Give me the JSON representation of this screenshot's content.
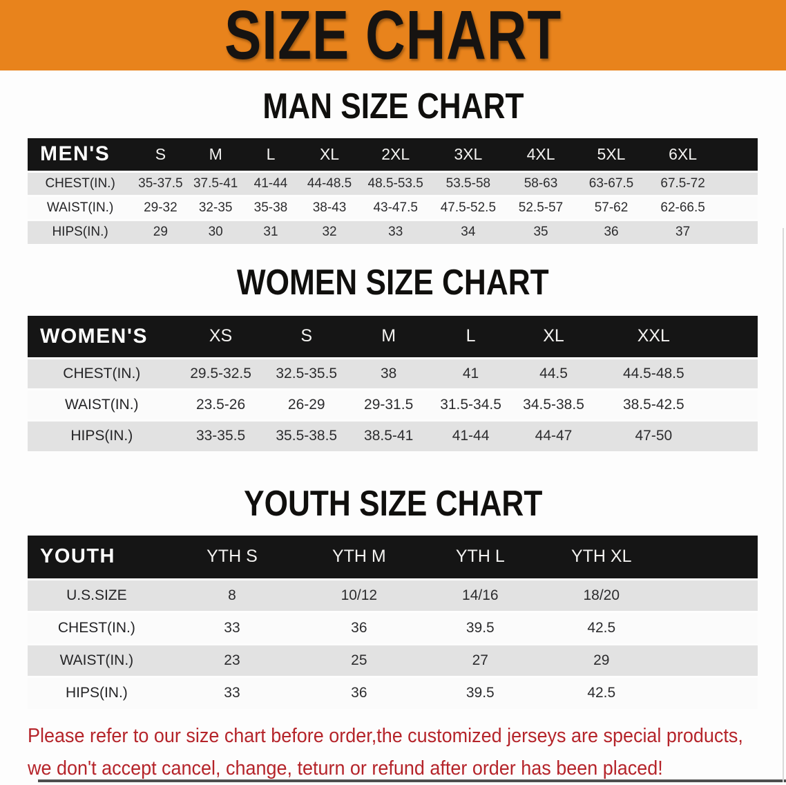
{
  "banner": {
    "title": "SIZE CHART",
    "bg_color": "#E8831C",
    "text_color": "#161311"
  },
  "colors": {
    "table_header_bg": "#151515",
    "row_stripe_gray": "#E2E2E2",
    "disclaimer_red": "#B5242A"
  },
  "sections": [
    {
      "heading": "MAN SIZE CHART",
      "table": {
        "label_header": "MEN'S",
        "size_headers": [
          "S",
          "M",
          "L",
          "XL",
          "2XL",
          "3XL",
          "4XL",
          "5XL",
          "6XL"
        ],
        "rows": [
          {
            "label": "CHEST(IN.)",
            "values": [
              "35-37.5",
              "37.5-41",
              "41-44",
              "44-48.5",
              "48.5-53.5",
              "53.5-58",
              "58-63",
              "63-67.5",
              "67.5-72"
            ]
          },
          {
            "label": "WAIST(IN.)",
            "values": [
              "29-32",
              "32-35",
              "35-38",
              "38-43",
              "43-47.5",
              "47.5-52.5",
              "52.5-57",
              "57-62",
              "62-66.5"
            ]
          },
          {
            "label": "HIPS(IN.)",
            "values": [
              "29",
              "30",
              "31",
              "32",
              "33",
              "34",
              "35",
              "36",
              "37"
            ]
          }
        ]
      }
    },
    {
      "heading": "WOMEN SIZE CHART",
      "table": {
        "label_header": "WOMEN'S",
        "size_headers": [
          "XS",
          "S",
          "M",
          "L",
          "XL",
          "XXL"
        ],
        "rows": [
          {
            "label": "CHEST(IN.)",
            "values": [
              "29.5-32.5",
              "32.5-35.5",
              "38",
              "41",
              "44.5",
              "44.5-48.5"
            ]
          },
          {
            "label": "WAIST(IN.)",
            "values": [
              "23.5-26",
              "26-29",
              "29-31.5",
              "31.5-34.5",
              "34.5-38.5",
              "38.5-42.5"
            ]
          },
          {
            "label": "HIPS(IN.)",
            "values": [
              "33-35.5",
              "35.5-38.5",
              "38.5-41",
              "41-44",
              "44-47",
              "47-50"
            ]
          }
        ]
      }
    },
    {
      "heading": "YOUTH SIZE CHART",
      "table": {
        "label_header": "YOUTH",
        "size_headers": [
          "YTH S",
          "YTH M",
          "YTH L",
          "YTH XL"
        ],
        "rows": [
          {
            "label": "U.S.SIZE",
            "values": [
              "8",
              "10/12",
              "14/16",
              "18/20"
            ]
          },
          {
            "label": "CHEST(IN.)",
            "values": [
              "33",
              "36",
              "39.5",
              "42.5"
            ]
          },
          {
            "label": "WAIST(IN.)",
            "values": [
              "23",
              "25",
              "27",
              "29"
            ]
          },
          {
            "label": "HIPS(IN.)",
            "values": [
              "33",
              "36",
              "39.5",
              "42.5"
            ]
          }
        ]
      }
    }
  ],
  "disclaimer": {
    "line1": "Please refer to our size chart before order,the customized jerseys are special products,",
    "line2": "we don't accept cancel, change, teturn or refund after order has been placed!",
    "color": "#B5242A"
  }
}
